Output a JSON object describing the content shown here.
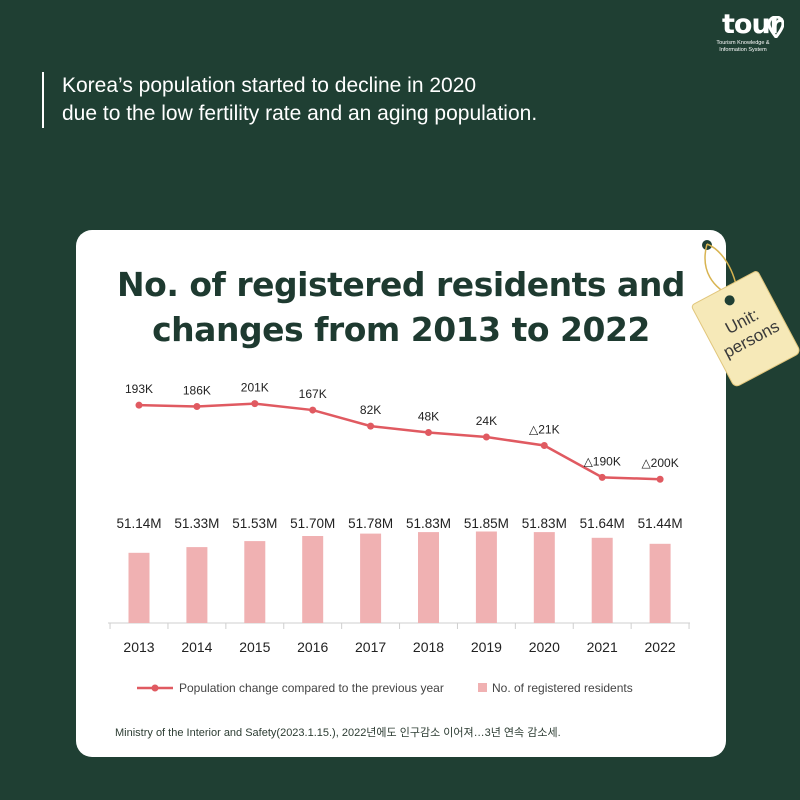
{
  "logo": {
    "word": "tour",
    "subtitle": "Tourism Knowledge &\nInformation System"
  },
  "headline": {
    "line1": "Korea’s population started to decline in 2020",
    "line2": "due to the low fertility rate and an aging population."
  },
  "card": {
    "title_line1": "No. of registered residents and",
    "title_line2": "changes from 2013 to 2022",
    "tag_text": "Unit:\npersons"
  },
  "source": "Ministry of the Interior and Safety(2023.1.15.), 2022년에도 인구감소 이어져…3년 연속 감소세.",
  "colors": {
    "background": "#1f3f33",
    "line": "#e05a61",
    "bar": "#f0b1b2",
    "title": "#1e3a30"
  },
  "chart_data": {
    "type": "bar",
    "categories": [
      "2013",
      "2014",
      "2015",
      "2016",
      "2017",
      "2018",
      "2019",
      "2020",
      "2021",
      "2022"
    ],
    "series": [
      {
        "name": "No. of registered residents",
        "type": "bar",
        "values": [
          51.14,
          51.33,
          51.53,
          51.7,
          51.78,
          51.83,
          51.85,
          51.83,
          51.64,
          51.44
        ],
        "labels": [
          "51.14M",
          "51.33M",
          "51.53M",
          "51.70M",
          "51.78M",
          "51.83M",
          "51.85M",
          "51.83M",
          "51.64M",
          "51.44M"
        ]
      },
      {
        "name": "Population change compared to the previous year",
        "type": "line",
        "values": [
          193,
          186,
          201,
          167,
          82,
          48,
          24,
          -21,
          -190,
          -200
        ],
        "labels": [
          "193K",
          "186K",
          "201K",
          "167K",
          "82K",
          "48K",
          "24K",
          "△21K",
          "△190K",
          "△200K"
        ]
      }
    ],
    "legend": {
      "position": "bottom"
    },
    "grid": false
  }
}
